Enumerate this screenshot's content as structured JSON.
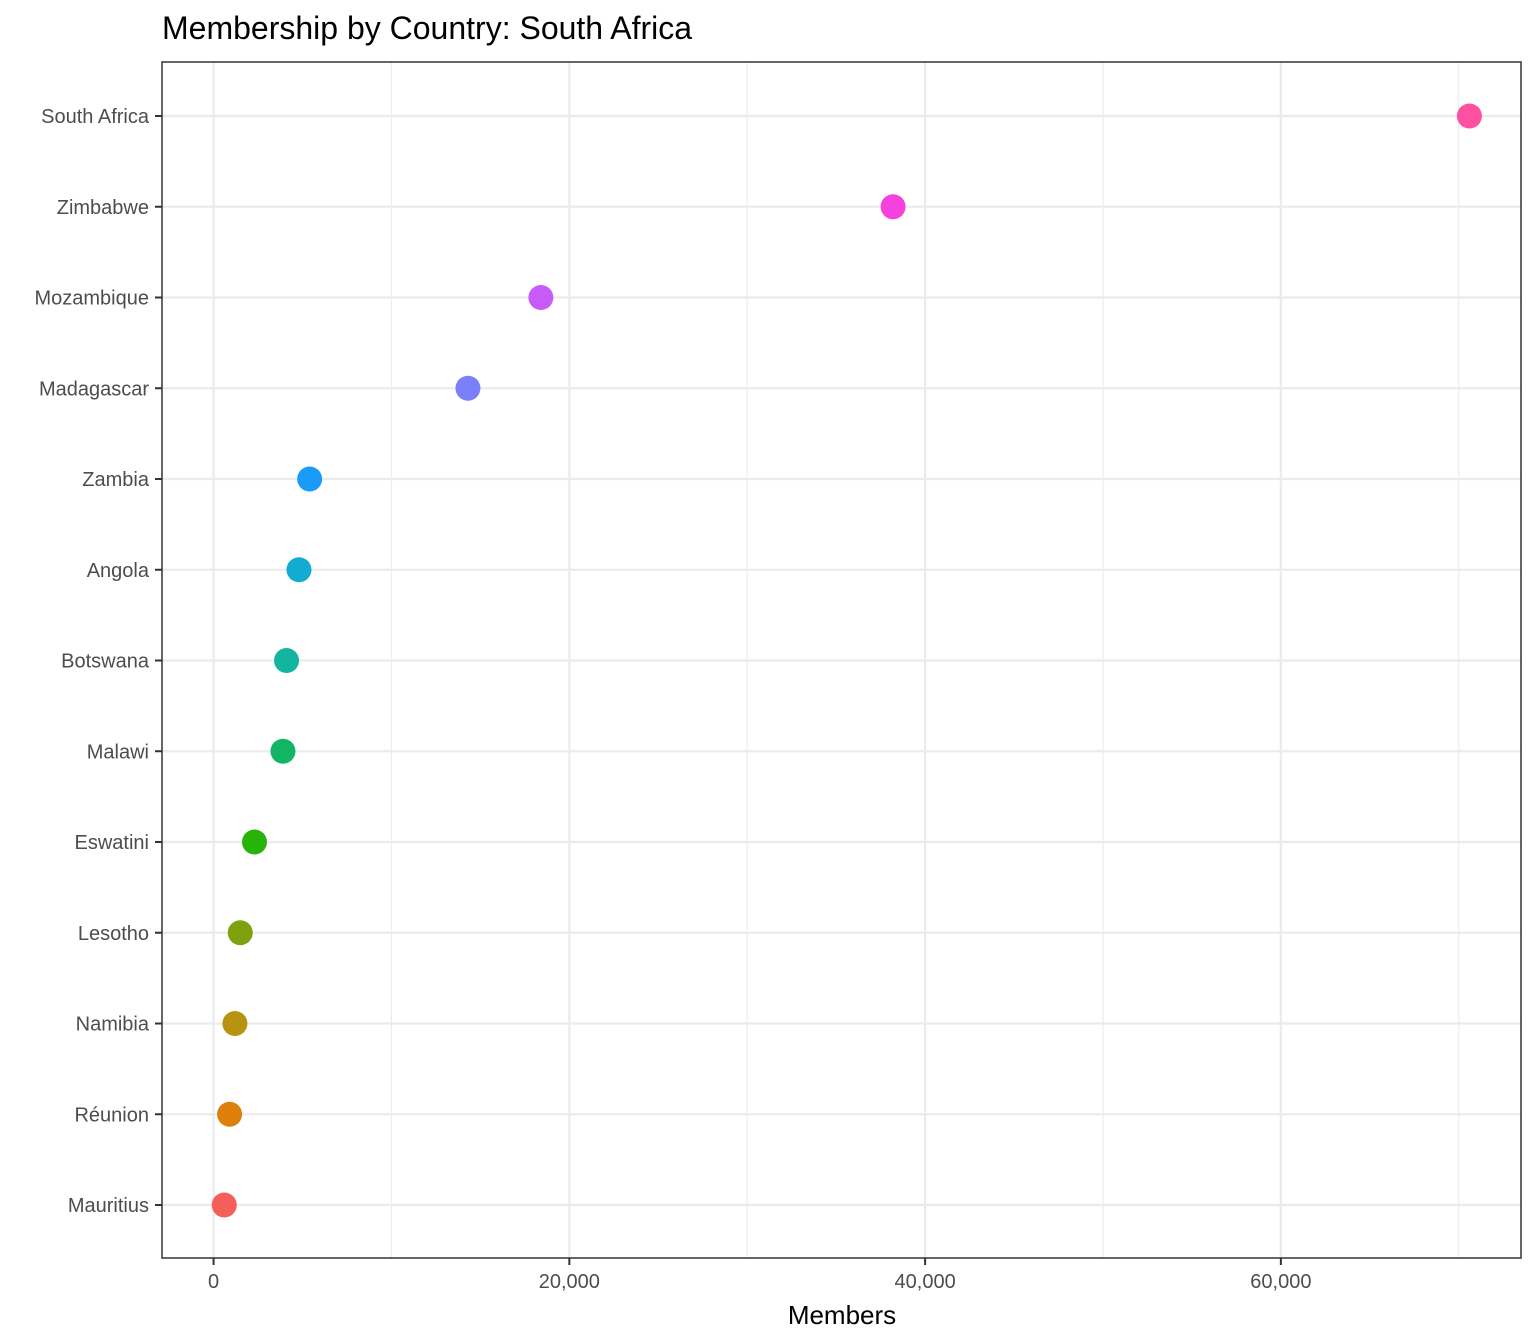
{
  "chart_data": {
    "type": "scatter",
    "title": "Membership by Country: South Africa",
    "xlabel": "Members",
    "ylabel": "",
    "xlim": [
      -2900,
      73500
    ],
    "x_ticks": [
      0,
      20000,
      40000,
      60000
    ],
    "x_tick_labels": [
      "0",
      "20,000",
      "40,000",
      "60,000"
    ],
    "x_minor_ticks": [
      10000,
      30000,
      50000,
      70000
    ],
    "grid": true,
    "legend": "none",
    "points": [
      {
        "country": "South Africa",
        "members": 70600,
        "color": "#FF4FA0"
      },
      {
        "country": "Zimbabwe",
        "members": 38200,
        "color": "#F542DC"
      },
      {
        "country": "Mozambique",
        "members": 18400,
        "color": "#C85AF7"
      },
      {
        "country": "Madagascar",
        "members": 14300,
        "color": "#7B80F8"
      },
      {
        "country": "Zambia",
        "members": 5400,
        "color": "#1A9BFA"
      },
      {
        "country": "Angola",
        "members": 4800,
        "color": "#14ABD2"
      },
      {
        "country": "Botswana",
        "members": 4100,
        "color": "#13B59F"
      },
      {
        "country": "Malawi",
        "members": 3900,
        "color": "#12B563"
      },
      {
        "country": "Eswatini",
        "members": 2300,
        "color": "#27B307"
      },
      {
        "country": "Lesotho",
        "members": 1500,
        "color": "#7FA10F"
      },
      {
        "country": "Namibia",
        "members": 1200,
        "color": "#B79310"
      },
      {
        "country": "Réunion",
        "members": 900,
        "color": "#DD7F0A"
      },
      {
        "country": "Mauritius",
        "members": 600,
        "color": "#F45F5A"
      }
    ]
  }
}
